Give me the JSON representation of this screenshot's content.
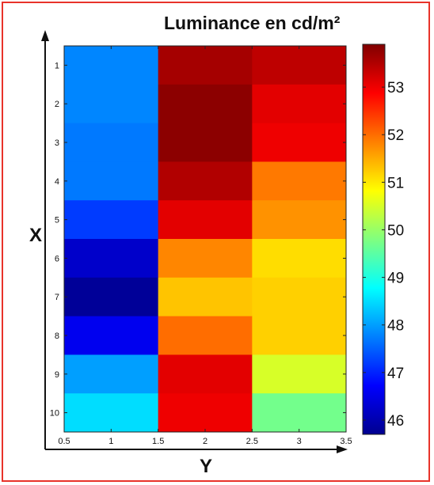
{
  "chart_data": {
    "type": "heatmap",
    "title": "Luminance en cd/m²",
    "xlabel": "Y",
    "ylabel": "X",
    "x_ticks": [
      "0.5",
      "1",
      "1.5",
      "2",
      "2.5",
      "3",
      "3.5"
    ],
    "x_tick_values": [
      0.5,
      1,
      1.5,
      2,
      2.5,
      3,
      3.5
    ],
    "y_ticks": [
      "1",
      "2",
      "3",
      "4",
      "5",
      "6",
      "7",
      "8",
      "9",
      "10"
    ],
    "x_range": [
      0.5,
      3.5
    ],
    "y_range": [
      0.5,
      10.5
    ],
    "columns": [
      1,
      2,
      3
    ],
    "rows": [
      1,
      2,
      3,
      4,
      5,
      6,
      7,
      8,
      9,
      10
    ],
    "values": [
      [
        47.8,
        53.6,
        53.4
      ],
      [
        47.8,
        53.8,
        53.1
      ],
      [
        47.7,
        53.8,
        53.0
      ],
      [
        47.7,
        53.5,
        51.9
      ],
      [
        47.2,
        53.1,
        51.7
      ],
      [
        46.3,
        51.8,
        51.1
      ],
      [
        45.9,
        51.3,
        51.2
      ],
      [
        46.6,
        52.0,
        51.2
      ],
      [
        48.0,
        53.1,
        50.5
      ],
      [
        48.5,
        53.0,
        49.7
      ]
    ],
    "colorbar": {
      "min": 45.7,
      "max": 53.9,
      "ticks": [
        "46",
        "47",
        "48",
        "49",
        "50",
        "51",
        "52",
        "53"
      ],
      "tick_values": [
        46,
        47,
        48,
        49,
        50,
        51,
        52,
        53
      ],
      "colormap": "jet"
    },
    "colors": {
      "frame": "#e8332a"
    }
  }
}
